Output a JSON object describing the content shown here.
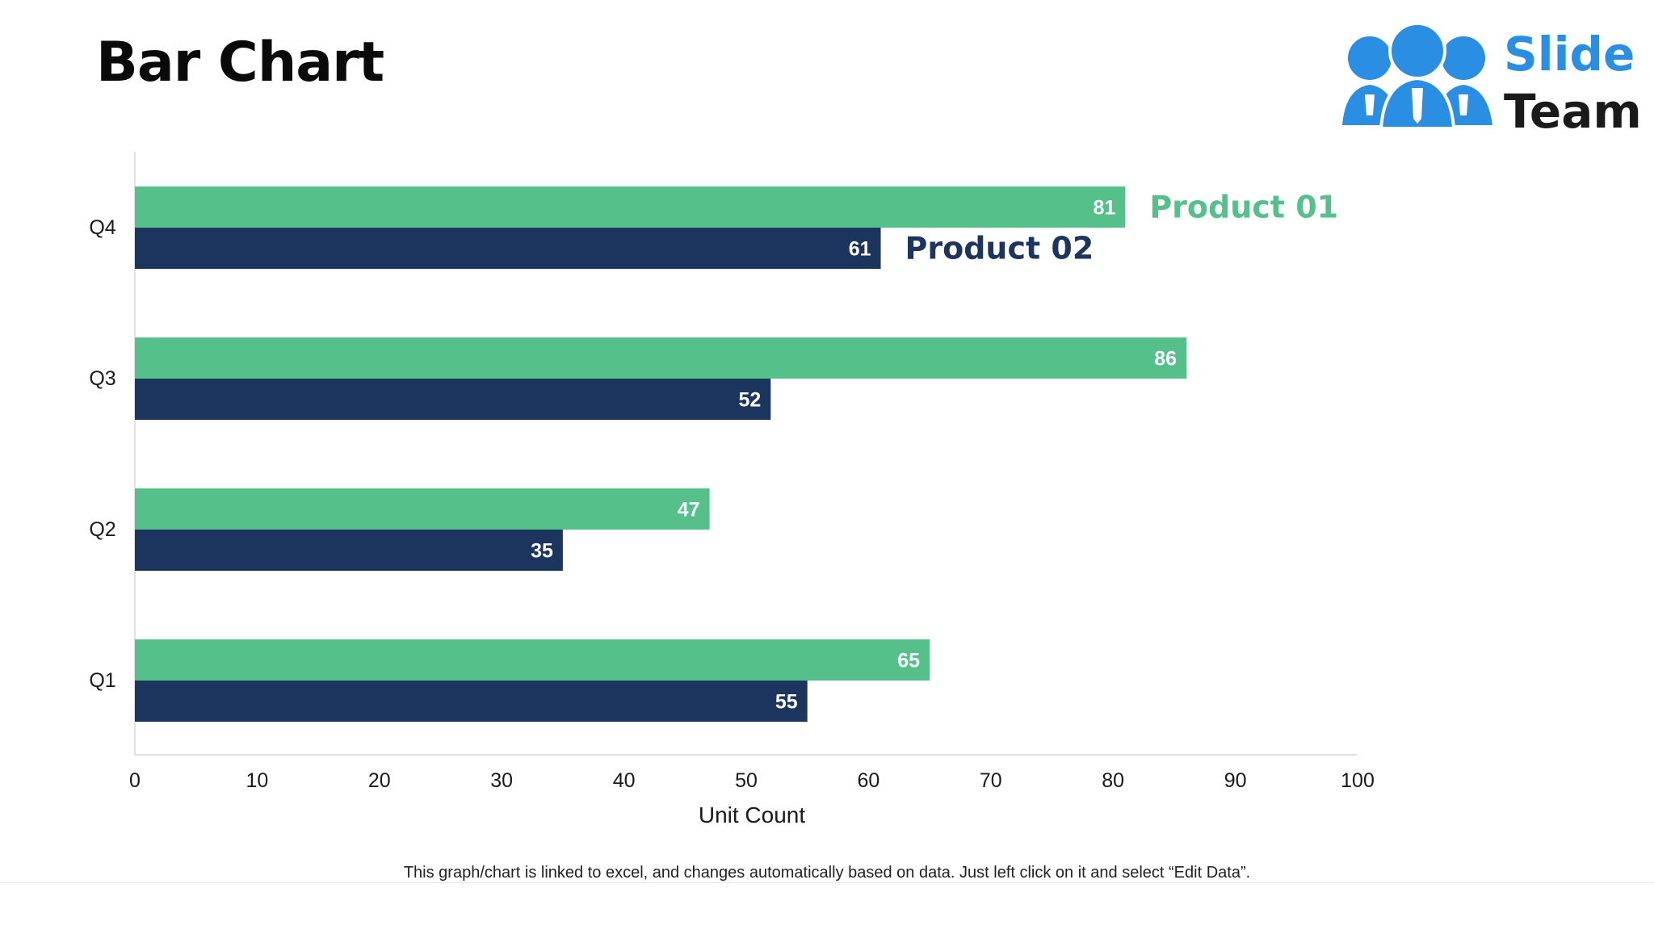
{
  "page": {
    "title": "Bar Chart"
  },
  "logo": {
    "line1": "Slide",
    "line2": "Team",
    "icon": "people-group-icon",
    "color": "#2a8fe3"
  },
  "footer": {
    "note": "This graph/chart is linked to excel, and changes automatically based on data. Just left click on it and select “Edit Data”."
  },
  "chart_data": {
    "type": "bar",
    "orientation": "horizontal",
    "categories": [
      "Q4",
      "Q3",
      "Q2",
      "Q1"
    ],
    "series": [
      {
        "name": "Product 01",
        "values": [
          81,
          86,
          47,
          65
        ],
        "color": "#55c08a"
      },
      {
        "name": "Product 02",
        "values": [
          61,
          52,
          35,
          55
        ],
        "color": "#1b355f"
      }
    ],
    "xlabel": "Unit Count",
    "ylabel": "",
    "xlim": [
      0,
      100
    ],
    "xticks": [
      "0",
      "10",
      "20",
      "30",
      "40",
      "50",
      "60",
      "70",
      "80",
      "90",
      "100"
    ],
    "data_labels": true,
    "grid": false,
    "legend": "inline series labels beside Q4 bars"
  }
}
